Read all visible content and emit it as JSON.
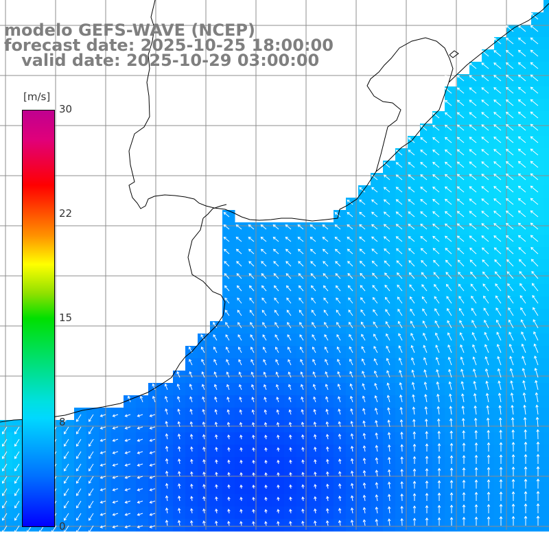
{
  "header": {
    "model": "modelo GEFS-WAVE (NCEP)",
    "forecast": "forecast date: 2025-10-25 18:00:00",
    "valid": "   valid date: 2025-10-29 03:00:00"
  },
  "colorbar": {
    "unit": "[m/s]",
    "ticks": [
      "30",
      "22",
      "15",
      "8",
      "0"
    ],
    "values": [
      30,
      22,
      15,
      8,
      0
    ]
  },
  "colors": {
    "land": "#ffffff",
    "grid": "#8c8c8c",
    "low": "#0000ff",
    "mid": "#00d8ff",
    "coast": "#000000",
    "arrows": "#ffffff"
  }
}
